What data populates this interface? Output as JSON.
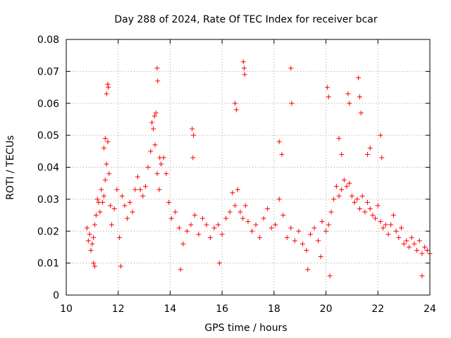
{
  "chart_data": {
    "type": "scatter",
    "title": "Day 288 of 2024, Rate Of TEC Index for receiver bcar",
    "xlabel": "GPS time / hours",
    "ylabel": "ROTI / TECUs",
    "xlim": [
      10,
      24
    ],
    "ylim": [
      0,
      0.08
    ],
    "x_ticks": [
      "10",
      "12",
      "14",
      "16",
      "18",
      "20",
      "22",
      "24"
    ],
    "y_ticks": [
      "0",
      "0.01",
      "0.02",
      "0.03",
      "0.04",
      "0.05",
      "0.06",
      "0.07",
      "0.08"
    ],
    "grid": true,
    "marker": "+",
    "series": [
      {
        "name": "ROTI",
        "color": "#ff0000",
        "x": [
          10.8,
          10.85,
          10.9,
          10.95,
          11.0,
          11.05,
          11.1,
          11.15,
          11.2,
          11.25,
          11.3,
          11.35,
          11.4,
          11.45,
          11.5,
          11.55,
          11.6,
          11.65,
          11.7,
          11.75,
          11.85,
          11.95,
          12.05,
          12.15,
          12.25,
          12.35,
          12.45,
          12.55,
          12.65,
          12.75,
          12.85,
          12.95,
          13.05,
          13.15,
          13.25,
          13.35,
          13.42,
          13.5,
          13.58,
          13.65,
          13.75,
          13.85,
          13.95,
          14.05,
          14.2,
          14.35,
          14.5,
          14.65,
          14.8,
          14.95,
          15.1,
          15.25,
          15.4,
          15.55,
          15.7,
          15.85,
          16.0,
          16.15,
          16.3,
          16.4,
          16.5,
          16.6,
          16.7,
          16.8,
          16.9,
          17.0,
          17.15,
          17.3,
          17.45,
          17.6,
          17.75,
          17.9,
          18.05,
          18.2,
          18.35,
          18.5,
          18.65,
          18.8,
          18.95,
          19.1,
          19.25,
          19.4,
          19.55,
          19.7,
          19.85,
          20.0,
          20.1,
          20.2,
          20.3,
          20.4,
          20.5,
          20.6,
          20.7,
          20.8,
          20.9,
          21.0,
          21.1,
          21.2,
          21.3,
          21.4,
          21.5,
          21.6,
          21.7,
          21.8,
          21.9,
          22.0,
          22.1,
          22.2,
          22.3,
          22.4,
          22.5,
          22.6,
          22.7,
          22.8,
          22.9,
          23.0,
          23.1,
          23.2,
          23.3,
          23.4,
          23.5,
          23.6,
          23.7,
          23.8,
          23.9,
          24.0,
          11.6,
          11.62,
          11.55,
          13.5,
          13.52,
          13.45,
          16.82,
          16.85,
          16.87,
          18.65,
          18.68,
          16.5,
          16.55,
          20.05,
          20.1,
          20.85,
          20.9,
          21.25,
          21.3,
          21.35,
          14.85,
          14.9,
          14.88,
          22.1,
          22.15,
          18.2,
          18.3,
          11.45,
          11.5,
          13.3,
          13.4,
          13.6,
          20.5,
          20.6,
          21.6,
          21.7,
          19.8,
          19.3,
          20.15,
          23.7,
          14.4,
          15.9,
          12.1,
          11.05,
          11.1
        ],
        "y": [
          0.021,
          0.017,
          0.019,
          0.014,
          0.016,
          0.018,
          0.022,
          0.025,
          0.03,
          0.029,
          0.026,
          0.033,
          0.029,
          0.031,
          0.036,
          0.041,
          0.048,
          0.038,
          0.028,
          0.022,
          0.027,
          0.033,
          0.018,
          0.031,
          0.028,
          0.024,
          0.029,
          0.026,
          0.033,
          0.037,
          0.033,
          0.031,
          0.034,
          0.04,
          0.045,
          0.052,
          0.047,
          0.038,
          0.033,
          0.041,
          0.043,
          0.038,
          0.029,
          0.024,
          0.026,
          0.021,
          0.016,
          0.02,
          0.022,
          0.025,
          0.019,
          0.024,
          0.022,
          0.018,
          0.021,
          0.022,
          0.019,
          0.024,
          0.026,
          0.032,
          0.028,
          0.033,
          0.026,
          0.024,
          0.028,
          0.023,
          0.02,
          0.022,
          0.018,
          0.024,
          0.027,
          0.021,
          0.022,
          0.03,
          0.025,
          0.018,
          0.021,
          0.017,
          0.02,
          0.016,
          0.014,
          0.019,
          0.021,
          0.017,
          0.023,
          0.02,
          0.022,
          0.026,
          0.03,
          0.034,
          0.031,
          0.033,
          0.036,
          0.034,
          0.035,
          0.031,
          0.029,
          0.03,
          0.027,
          0.031,
          0.026,
          0.029,
          0.027,
          0.025,
          0.024,
          0.028,
          0.023,
          0.021,
          0.022,
          0.019,
          0.022,
          0.025,
          0.02,
          0.018,
          0.021,
          0.016,
          0.017,
          0.015,
          0.018,
          0.016,
          0.014,
          0.017,
          0.013,
          0.015,
          0.014,
          0.013,
          0.066,
          0.065,
          0.063,
          0.071,
          0.067,
          0.057,
          0.073,
          0.071,
          0.069,
          0.071,
          0.06,
          0.06,
          0.058,
          0.065,
          0.062,
          0.063,
          0.06,
          0.068,
          0.062,
          0.057,
          0.052,
          0.05,
          0.043,
          0.05,
          0.043,
          0.048,
          0.044,
          0.046,
          0.049,
          0.054,
          0.056,
          0.043,
          0.049,
          0.044,
          0.044,
          0.046,
          0.012,
          0.008,
          0.006,
          0.006,
          0.008,
          0.01,
          0.009,
          0.01,
          0.009
        ]
      }
    ]
  }
}
